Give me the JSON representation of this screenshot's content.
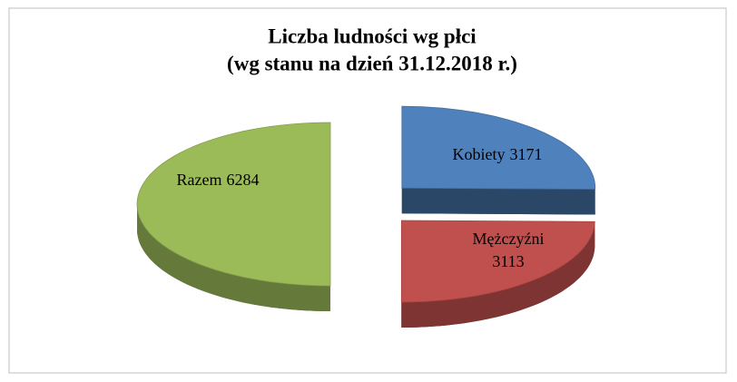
{
  "chart_data": {
    "type": "pie3d",
    "title": "Liczba ludności wg płci",
    "subtitle": "(wg stanu na dzień 31.12.2018 r.)",
    "categories": [
      "Razem",
      "Kobiety",
      "Mężczyźni"
    ],
    "values": [
      6284,
      3171,
      3113
    ],
    "colors": [
      "#9bbb59",
      "#4f81bd",
      "#c0504d"
    ]
  }
}
